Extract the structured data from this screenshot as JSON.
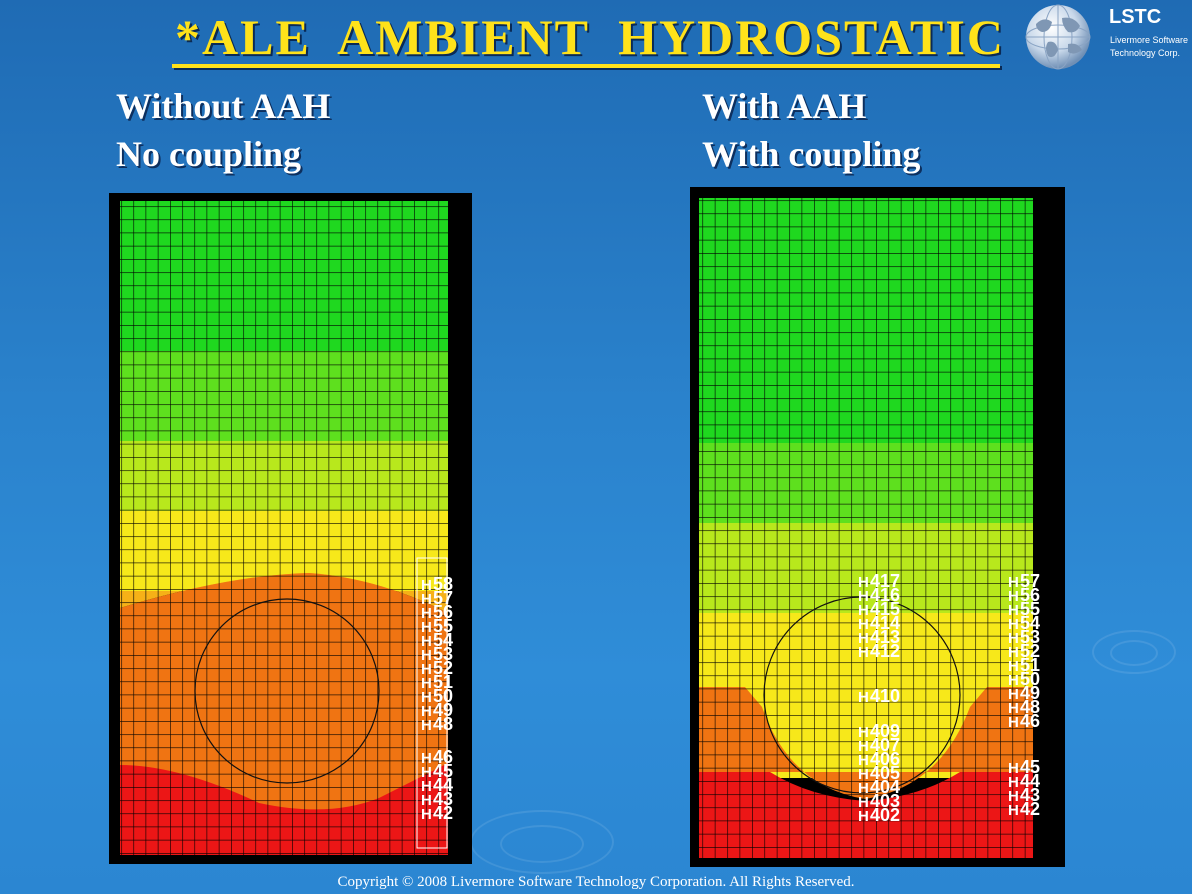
{
  "slide": {
    "title": "*ALE  AMBIENT  HYDROSTATIC",
    "copyright": "Copyright © 2008 Livermore Software Technology Corporation.  All Rights Reserved."
  },
  "logo": {
    "main": "LSTC",
    "sub_line1": "Livermore Software",
    "sub_line2": "Technology Corp.",
    "icon": "globe-icon"
  },
  "left_panel": {
    "heading_line1": "Without AAH",
    "heading_line2": "No coupling",
    "node_labels": [
      "58",
      "57",
      "56",
      "55",
      "54",
      "53",
      "52",
      "51",
      "50",
      "49",
      "48",
      "46",
      "45",
      "44",
      "43",
      "42"
    ]
  },
  "right_panel": {
    "heading_line1": "With AAH",
    "heading_line2": "With coupling",
    "inner_node_labels": [
      "417",
      "416",
      "415",
      "414",
      "413",
      "412",
      "410",
      "409",
      "407",
      "406",
      "405",
      "404",
      "403",
      "402"
    ],
    "outer_node_labels": [
      "57",
      "56",
      "55",
      "54",
      "53",
      "52",
      "51",
      "50",
      "49",
      "48",
      "46",
      "45",
      "44",
      "43",
      "42"
    ]
  },
  "colors": {
    "title_yellow": "#ffe21a",
    "green": "#1fd81f",
    "light_green": "#66e020",
    "yellow_green": "#b8e81c",
    "yellow": "#f7e81a",
    "orange_yellow": "#f6b117",
    "orange": "#f07412",
    "red": "#ec1616"
  }
}
